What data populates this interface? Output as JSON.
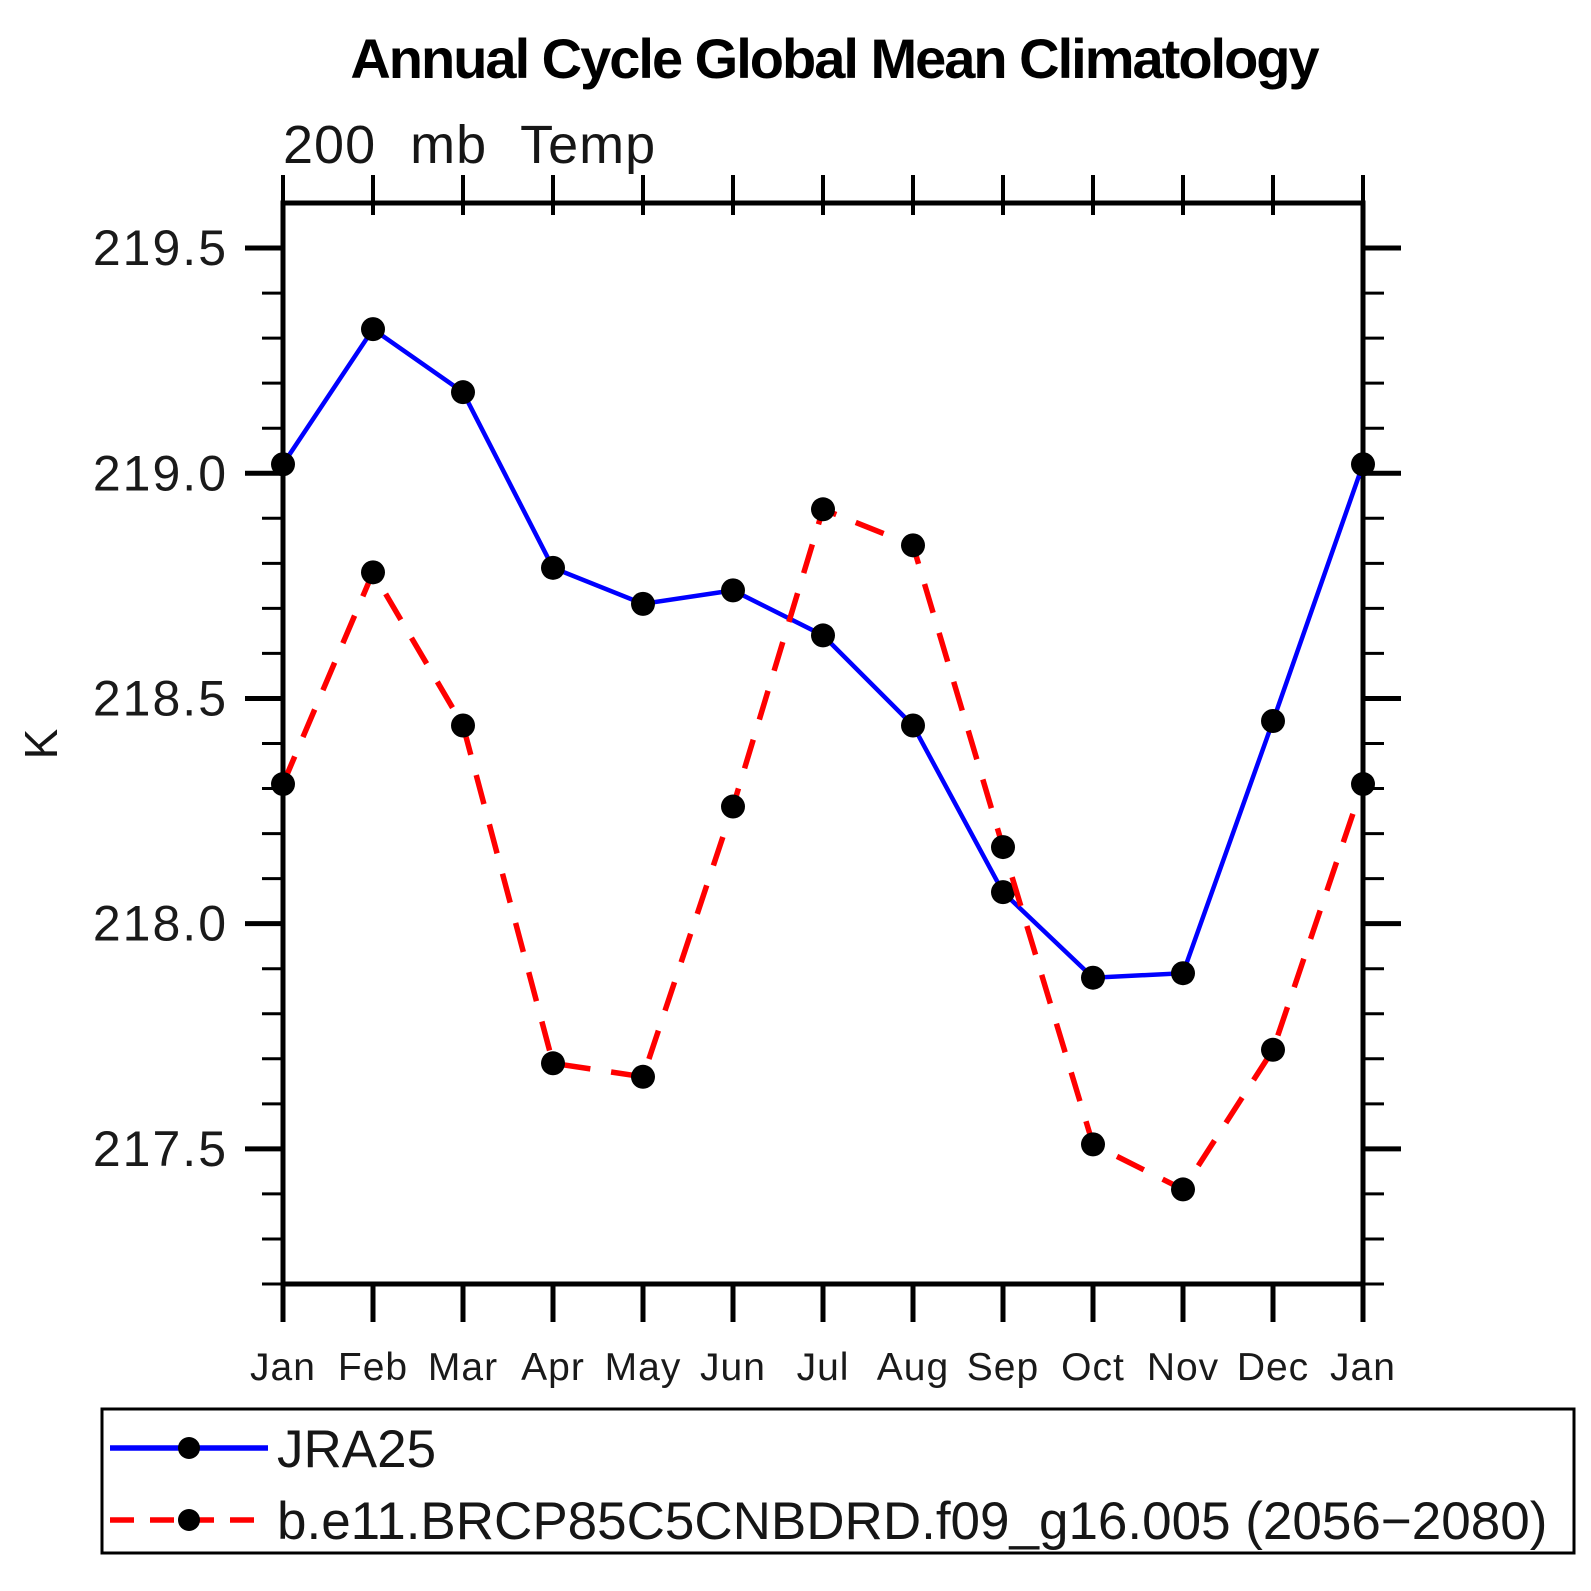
{
  "title": "Annual Cycle Global Mean Climatology",
  "subtitle": "200 mb Temp",
  "ylabel": "K",
  "legend": [
    {
      "label": "JRA25",
      "color": "#0000ff",
      "style": "solid"
    },
    {
      "label": "b.e11.BRCP85C5CNBDRD.f09_g16.005 (2056−2080)",
      "color": "#ff0000",
      "style": "dashed"
    }
  ],
  "chart_data": {
    "type": "line",
    "title": "Annual Cycle Global Mean Climatology",
    "subtitle": "200 mb Temp",
    "xlabel": "",
    "ylabel": "K",
    "categories": [
      "Jan",
      "Feb",
      "Mar",
      "Apr",
      "May",
      "Jun",
      "Jul",
      "Aug",
      "Sep",
      "Oct",
      "Nov",
      "Dec",
      "Jan"
    ],
    "series": [
      {
        "name": "JRA25",
        "color": "#0000ff",
        "style": "solid",
        "marker": "circle",
        "values": [
          219.02,
          219.32,
          219.18,
          218.79,
          218.71,
          218.74,
          218.64,
          218.44,
          218.07,
          217.88,
          217.89,
          218.45,
          219.02
        ]
      },
      {
        "name": "b.e11.BRCP85C5CNBDRD.f09_g16.005 (2056−2080)",
        "color": "#ff0000",
        "style": "dashed",
        "marker": "circle",
        "values": [
          218.31,
          218.78,
          218.44,
          217.69,
          217.66,
          218.26,
          218.92,
          218.84,
          218.17,
          217.51,
          217.41,
          217.72,
          218.31
        ]
      }
    ],
    "ylim": [
      217.2,
      219.6
    ],
    "yticks_major": [
      217.5,
      218.0,
      218.5,
      219.0,
      219.5
    ],
    "ytick_minor_step": 0.1,
    "ytick_label_format": "1dp",
    "grid": false,
    "legend_position": "bottom"
  }
}
